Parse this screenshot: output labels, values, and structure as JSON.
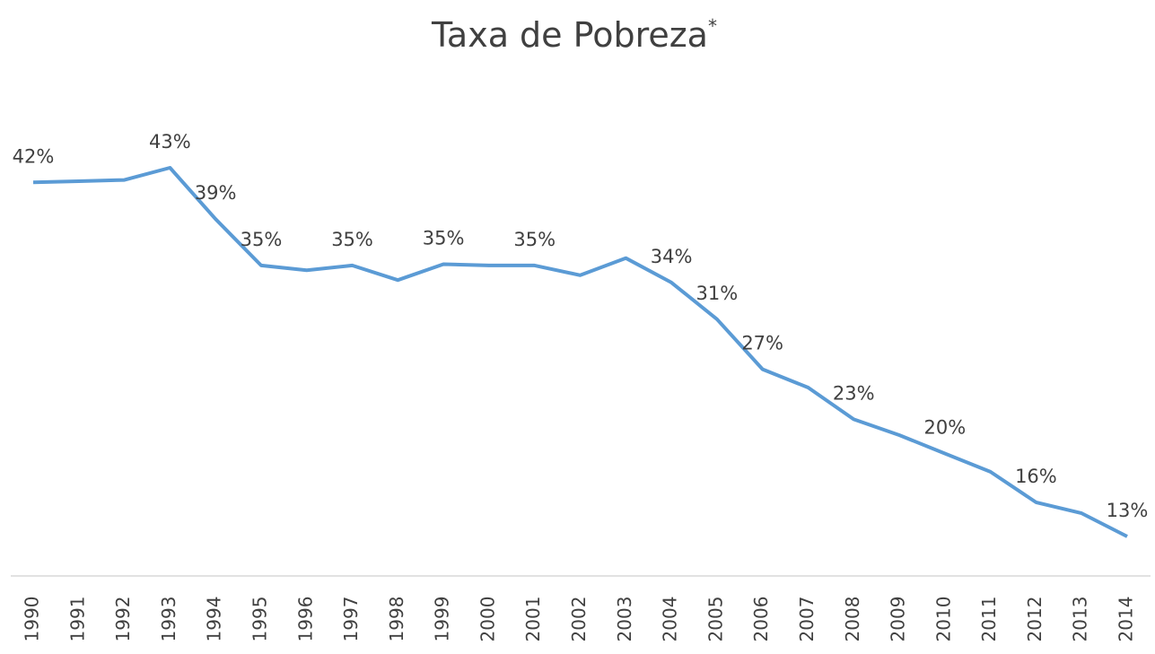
{
  "chart_data": {
    "type": "line",
    "title": "Taxa de Pobreza",
    "title_note": "*",
    "categories": [
      "1990",
      "1991",
      "1992",
      "1993",
      "1994",
      "1995",
      "1996",
      "1997",
      "1998",
      "1999",
      "2000",
      "2001",
      "2002",
      "2003",
      "2004",
      "2005",
      "2006",
      "2007",
      "2008",
      "2009",
      "2010",
      "2011",
      "2012",
      "2013",
      "2014"
    ],
    "values": [
      42.0,
      42.1,
      42.2,
      43.2,
      39.0,
      35.2,
      34.8,
      35.2,
      34.0,
      35.3,
      35.2,
      35.2,
      34.4,
      35.8,
      33.8,
      30.8,
      26.7,
      25.2,
      22.6,
      21.3,
      19.8,
      18.3,
      15.8,
      14.9,
      13.0
    ],
    "value_labels": [
      "42%",
      null,
      null,
      "43%",
      "39%",
      "35%",
      null,
      "35%",
      null,
      "35%",
      null,
      "35%",
      null,
      null,
      "34%",
      "31%",
      "27%",
      null,
      "23%",
      null,
      "20%",
      null,
      "16%",
      null,
      "13%"
    ],
    "color": "#5b9bd5"
  }
}
